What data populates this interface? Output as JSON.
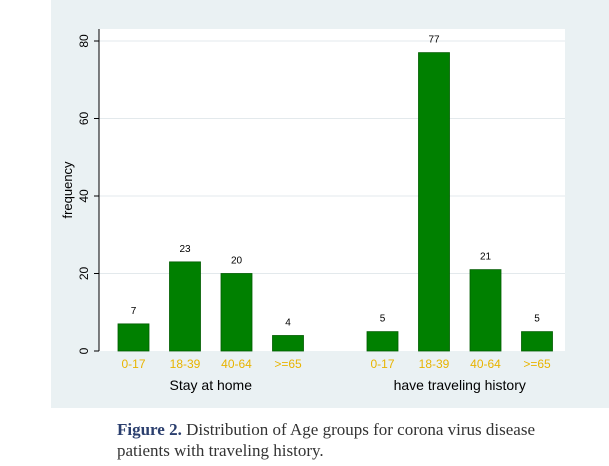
{
  "chart_data": {
    "type": "bar",
    "title": "",
    "xlabel": "",
    "ylabel": "frequency",
    "ylim": [
      0,
      80
    ],
    "yticks": [
      0,
      20,
      40,
      60,
      80
    ],
    "grid": true,
    "bar_color": "#008000",
    "category_label_color": "#e8b400",
    "groups": [
      {
        "name": "Stay at home",
        "categories": [
          "0-17",
          "18-39",
          "40-64",
          ">=65"
        ],
        "values": [
          7,
          23,
          20,
          4
        ]
      },
      {
        "name": "have traveling history",
        "categories": [
          "0-17",
          "18-39",
          "40-64",
          ">=65"
        ],
        "values": [
          5,
          77,
          21,
          5
        ]
      }
    ]
  },
  "caption": {
    "label": "Figure 2.",
    "text": " Distribution of Age groups for corona virus disease patients with traveling history."
  }
}
